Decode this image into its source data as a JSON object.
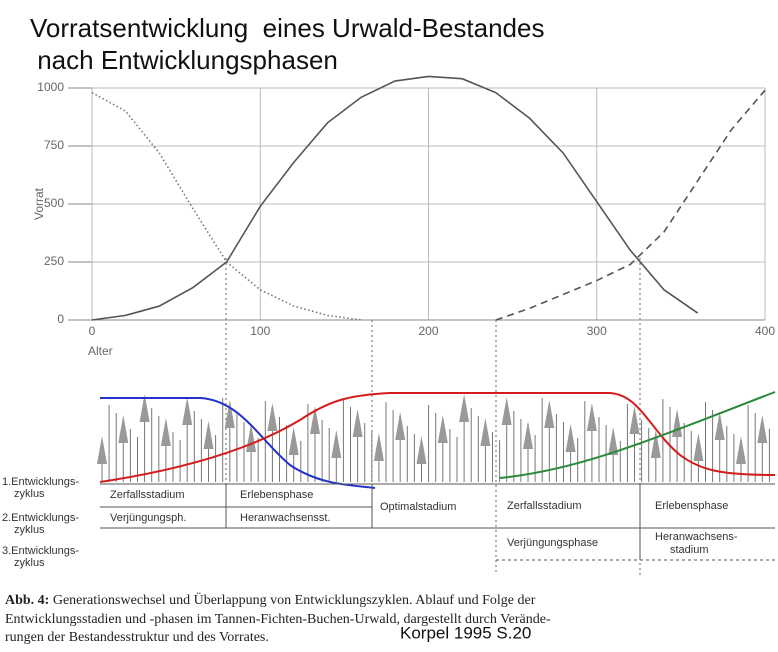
{
  "chart_data": {
    "type": "line",
    "title": "Vorratsentwicklung  eines Urwald-Bestandes",
    "subtitle": " nach Entwicklungsphasen",
    "xlabel": "Alter",
    "ylabel": "Vorrat",
    "x": [
      0,
      20,
      40,
      60,
      80,
      100,
      120,
      140,
      160,
      180,
      200,
      220,
      240,
      260,
      280,
      300,
      320,
      340,
      360,
      380,
      400
    ],
    "xlim": [
      0,
      400
    ],
    "ylim": [
      0,
      1000
    ],
    "xticks": [
      0,
      100,
      200,
      300,
      400
    ],
    "yticks": [
      0,
      250,
      500,
      750,
      1000
    ],
    "grid": true,
    "series": [
      {
        "color": "#777777",
        "style": "dotted",
        "values": [
          980,
          900,
          720,
          480,
          250,
          130,
          60,
          20,
          0,
          null,
          null,
          null,
          null,
          null,
          null,
          null,
          null,
          null,
          null,
          null,
          null
        ]
      },
      {
        "color": "#555555",
        "style": "solid",
        "values": [
          0,
          20,
          60,
          140,
          250,
          490,
          680,
          850,
          960,
          1030,
          1050,
          1040,
          980,
          870,
          720,
          510,
          300,
          130,
          30,
          null,
          null
        ]
      },
      {
        "color": "#555555",
        "style": "dashed",
        "values": [
          null,
          null,
          null,
          null,
          null,
          null,
          null,
          null,
          null,
          null,
          null,
          null,
          0,
          50,
          110,
          170,
          240,
          380,
          600,
          820,
          990
        ]
      }
    ]
  },
  "figure": {
    "cycle_labels": [
      "1.Entwicklungs-",
      "zyklus",
      "2.Entwicklungs-",
      "zyklus",
      "3.Entwicklungs-",
      "zyklus"
    ],
    "cells": [
      "Zerfallsstadium",
      "Erlebensphase",
      "Verjüngungsph.",
      "Heranwachsensst.",
      "Optimalstadium",
      "Zerfallsstadium",
      "Erlebensphase",
      "Verjüngungsphase",
      "Heranwachsens-",
      "stadium"
    ],
    "caption": {
      "label": "Abb. 4:",
      "lines": [
        " Generationswechsel und Überlappung von Entwicklungszyklen. Ablauf und Folge der",
        "Entwicklungsstadien und -phasen im Tannen-Fichten-Buchen-Urwald, dargestellt durch Verände-",
        "rungen der Bestandesstruktur und des Vorrates."
      ]
    },
    "credit": "Korpel 1995 S.20"
  }
}
